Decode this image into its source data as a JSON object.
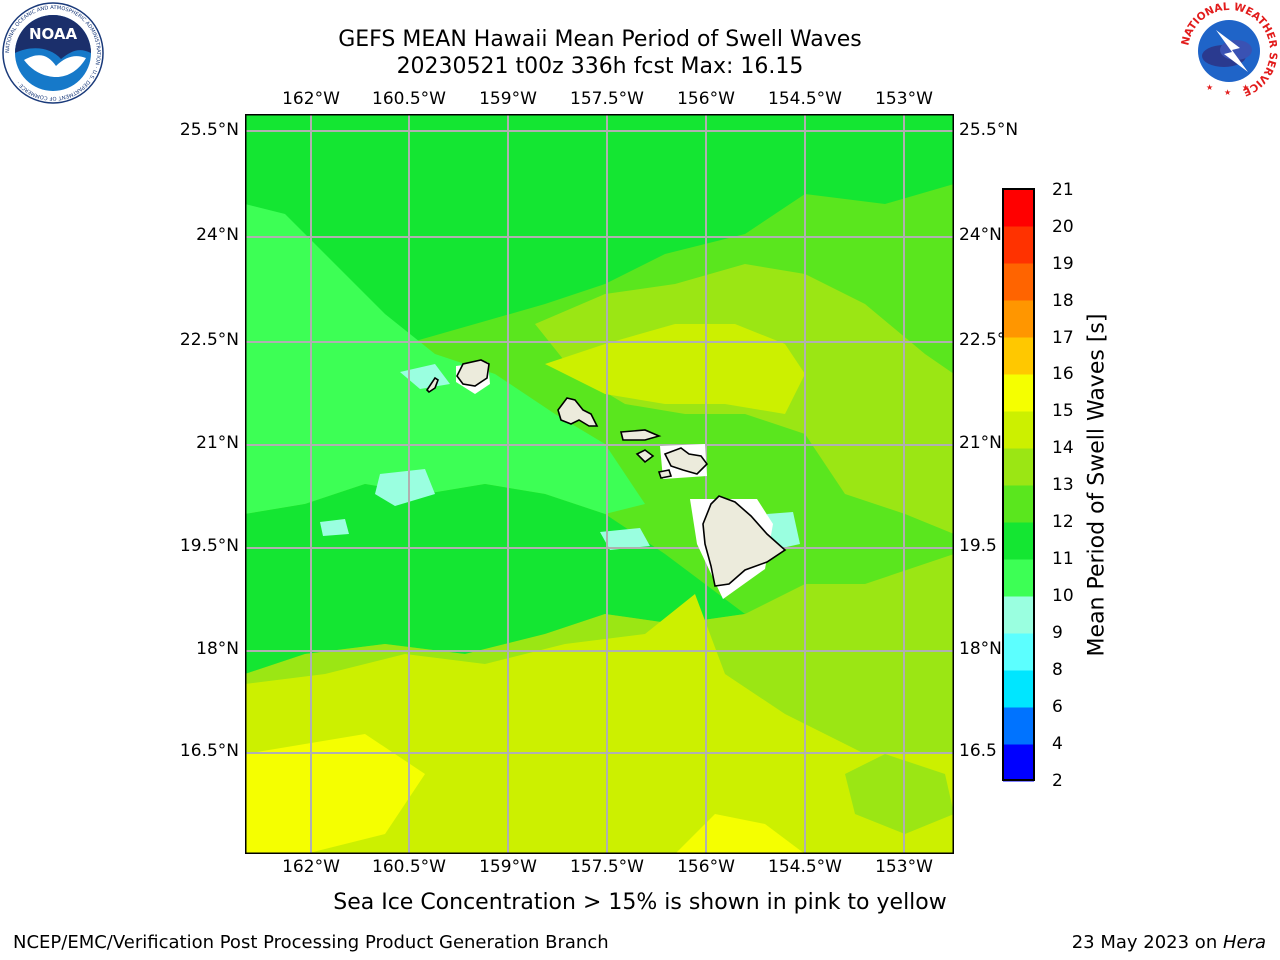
{
  "title": {
    "line1": "GEFS MEAN Hawaii Mean Period of Swell Waves",
    "line2": "20230521 t00z 336h fcst   Max: 16.15"
  },
  "map": {
    "lon_ticks": [
      "162°W",
      "160.5°W",
      "159°W",
      "157.5°W",
      "156°W",
      "154.5°W",
      "153°W"
    ],
    "lat_ticks_left": [
      "25.5°N",
      "24°N",
      "22.5°N",
      "21°N",
      "19.5°N",
      "18°N",
      "16.5°N"
    ],
    "lat_ticks_right": [
      "25.5°N",
      "24°N",
      "22.5°",
      "21°N",
      "19.5",
      "18°N",
      "16.5"
    ],
    "land_color": "#ecebdc",
    "grid_color": "#b0b0b0",
    "islands": [
      "Niihau",
      "Kauai",
      "Oahu",
      "Molokai",
      "Lanai",
      "Kahoolawe",
      "Maui",
      "Hawaii"
    ]
  },
  "colorbar": {
    "label": "Mean Period of Swell Waves [s]",
    "ticks": [
      "21",
      "20",
      "19",
      "18",
      "17",
      "16",
      "15",
      "14",
      "13",
      "12",
      "11",
      "10",
      "9",
      "8",
      "6",
      "4",
      "2"
    ],
    "colors": [
      "#0000ff",
      "#0073ff",
      "#00e6ff",
      "#5cffff",
      "#9affe0",
      "#3dff55",
      "#14e632",
      "#5ae61e",
      "#9be614",
      "#ccf000",
      "#f5ff00",
      "#ffc800",
      "#ff9600",
      "#ff6400",
      "#ff3200",
      "#ff0000"
    ]
  },
  "caption": "Sea Ice Concentration > 15% is shown in pink to yellow",
  "footer": {
    "left": "NCEP/EMC/Verification Post Processing Product Generation Branch",
    "right_date": "23 May 2023 on ",
    "right_host": "Hera"
  },
  "logos": {
    "noaa": "NOAA",
    "noaa_ring": "NATIONAL OCEANIC AND ATMOSPHERIC ADMINISTRATION · U.S. DEPARTMENT OF COMMERCE ·",
    "nws_ring": "NATIONAL WEATHER SERVICE"
  }
}
